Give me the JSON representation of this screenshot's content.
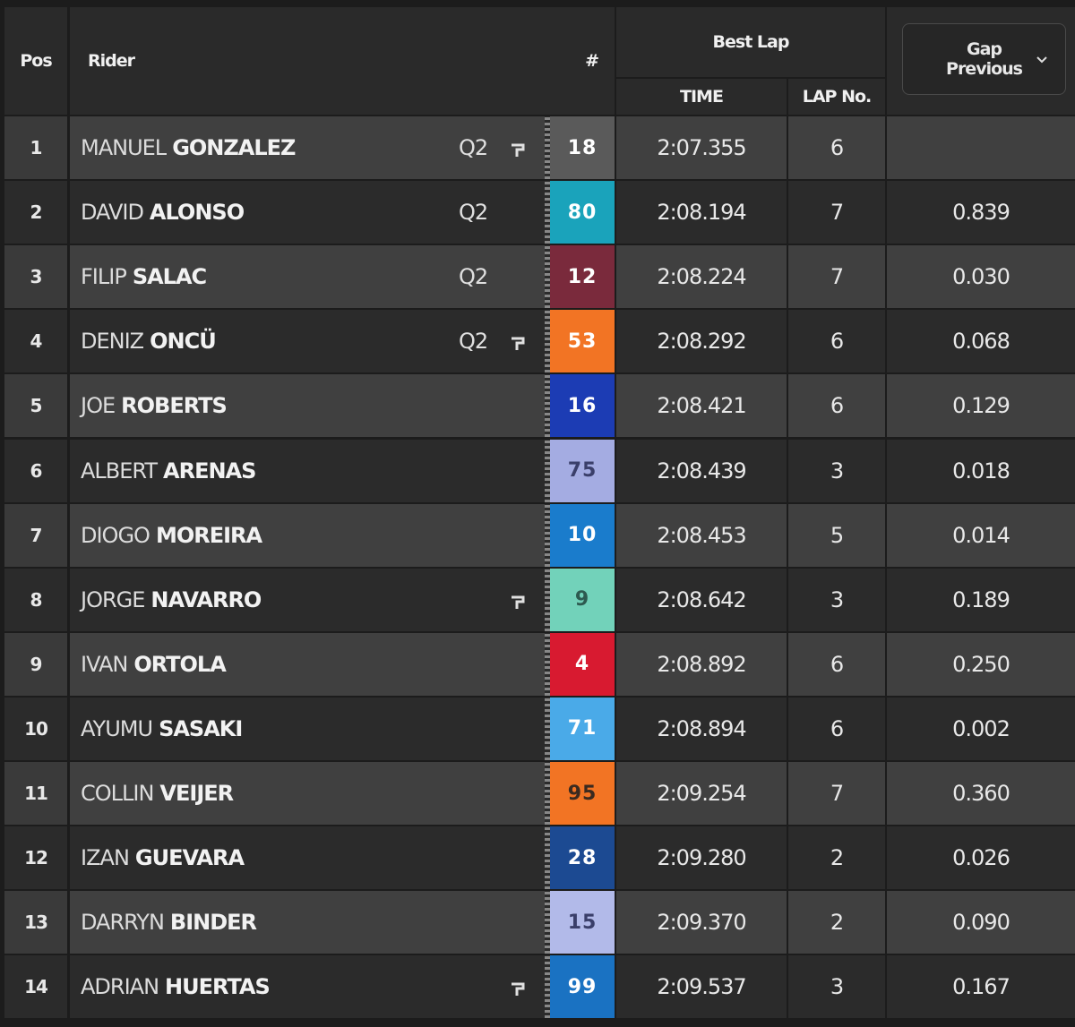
{
  "header": {
    "pos": "Pos",
    "rider": "Rider",
    "number": "#",
    "best_lap": "Best Lap",
    "time": "TIME",
    "lap_no": "LAP No.",
    "gap": "Gap",
    "previous": "Previous"
  },
  "rows": [
    {
      "pos": "1",
      "first": "MANUEL",
      "last": "GONZALEZ",
      "session": "Q2",
      "flag": true,
      "number": "18",
      "color": "#5a5a5a",
      "text_color": "#ffffff",
      "time": "2:07.355",
      "lap": "6",
      "gap": null
    },
    {
      "pos": "2",
      "first": "DAVID",
      "last": "ALONSO",
      "session": "Q2",
      "flag": false,
      "number": "80",
      "color": "#1aa3bb",
      "text_color": "#ffffff",
      "time": "2:08.194",
      "lap": "7",
      "gap": "0.839"
    },
    {
      "pos": "3",
      "first": "FILIP",
      "last": "SALAC",
      "session": "Q2",
      "flag": false,
      "number": "12",
      "color": "#7a2a3c",
      "text_color": "#ffffff",
      "time": "2:08.224",
      "lap": "7",
      "gap": "0.030"
    },
    {
      "pos": "4",
      "first": "DENIZ",
      "last": "ONCÜ",
      "session": "Q2",
      "flag": true,
      "number": "53",
      "color": "#f27424",
      "text_color": "#ffffff",
      "time": "2:08.292",
      "lap": "6",
      "gap": "0.068"
    },
    {
      "pos": "5",
      "first": "JOE",
      "last": "ROBERTS",
      "session": null,
      "flag": false,
      "number": "16",
      "color": "#1c3cb4",
      "text_color": "#ffffff",
      "time": "2:08.421",
      "lap": "6",
      "gap": "0.129"
    },
    {
      "pos": "6",
      "first": "ALBERT",
      "last": "ARENAS",
      "session": null,
      "flag": false,
      "number": "75",
      "color": "#a4ace2",
      "text_color": "#3a3f6a",
      "time": "2:08.439",
      "lap": "3",
      "gap": "0.018"
    },
    {
      "pos": "7",
      "first": "DIOGO",
      "last": "MOREIRA",
      "session": null,
      "flag": false,
      "number": "10",
      "color": "#1a7ccc",
      "text_color": "#ffffff",
      "time": "2:08.453",
      "lap": "5",
      "gap": "0.014"
    },
    {
      "pos": "8",
      "first": "JORGE",
      "last": "NAVARRO",
      "session": null,
      "flag": true,
      "number": "9",
      "color": "#72d2ba",
      "text_color": "#2d5a50",
      "time": "2:08.642",
      "lap": "3",
      "gap": "0.189"
    },
    {
      "pos": "9",
      "first": "IVAN",
      "last": "ORTOLA",
      "session": null,
      "flag": false,
      "number": "4",
      "color": "#d81a30",
      "text_color": "#ffffff",
      "time": "2:08.892",
      "lap": "6",
      "gap": "0.250"
    },
    {
      "pos": "10",
      "first": "AYUMU",
      "last": "SASAKI",
      "session": null,
      "flag": false,
      "number": "71",
      "color": "#4aaae8",
      "text_color": "#ffffff",
      "time": "2:08.894",
      "lap": "6",
      "gap": "0.002"
    },
    {
      "pos": "11",
      "first": "COLLIN",
      "last": "VEIJER",
      "session": null,
      "flag": false,
      "number": "95",
      "color": "#f27424",
      "text_color": "#3a2a20",
      "time": "2:09.254",
      "lap": "7",
      "gap": "0.360"
    },
    {
      "pos": "12",
      "first": "IZAN",
      "last": "GUEVARA",
      "session": null,
      "flag": false,
      "number": "28",
      "color": "#1c4a92",
      "text_color": "#ffffff",
      "time": "2:09.280",
      "lap": "2",
      "gap": "0.026"
    },
    {
      "pos": "13",
      "first": "DARRYN",
      "last": "BINDER",
      "session": null,
      "flag": false,
      "number": "15",
      "color": "#b2bae9",
      "text_color": "#3a3f6a",
      "time": "2:09.370",
      "lap": "2",
      "gap": "0.090"
    },
    {
      "pos": "14",
      "first": "ADRIAN",
      "last": "HUERTAS",
      "session": null,
      "flag": true,
      "number": "99",
      "color": "#1a72c2",
      "text_color": "#ffffff",
      "time": "2:09.537",
      "lap": "3",
      "gap": "0.167"
    }
  ]
}
